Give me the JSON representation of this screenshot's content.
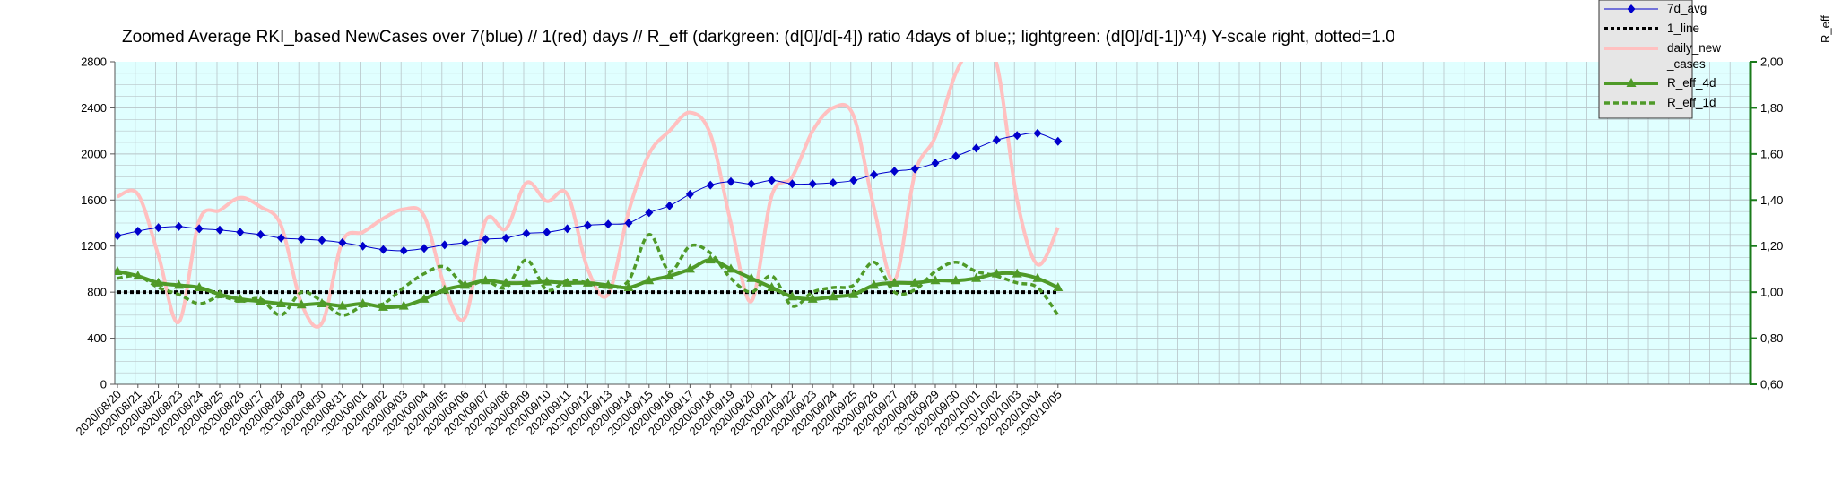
{
  "chart_data": {
    "type": "line",
    "title": "Zoomed Average RKI_based NewCases over 7(blue) // 1(red) days //  R_eff (darkgreen: (d[0]/d[-4]) ratio 4days of blue;; lightgreen: (d[0]/d[-1])^4) Y-scale right, dotted=1.0",
    "ylabel_right": "R_eff",
    "ylim": [
      0,
      2800
    ],
    "yticks": [
      "0",
      "400",
      "800",
      "1200",
      "1600",
      "2000",
      "2400",
      "2800"
    ],
    "y2lim": [
      0.6,
      2.0
    ],
    "y2ticks": [
      "0,60",
      "0,80",
      "1,00",
      "1,20",
      "1,40",
      "1,60",
      "1,80",
      "2,00"
    ],
    "grid": true,
    "legend_position": "top-right",
    "categories": [
      "2020/08/20",
      "2020/08/21",
      "2020/08/22",
      "2020/08/23",
      "2020/08/24",
      "2020/08/25",
      "2020/08/26",
      "2020/08/27",
      "2020/08/28",
      "2020/08/29",
      "2020/08/30",
      "2020/08/31",
      "2020/09/01",
      "2020/09/02",
      "2020/09/03",
      "2020/09/04",
      "2020/09/05",
      "2020/09/06",
      "2020/09/07",
      "2020/09/08",
      "2020/09/09",
      "2020/09/10",
      "2020/09/11",
      "2020/09/12",
      "2020/09/13",
      "2020/09/14",
      "2020/09/15",
      "2020/09/16",
      "2020/09/17",
      "2020/09/18",
      "2020/09/19",
      "2020/09/20",
      "2020/09/21",
      "2020/09/22",
      "2020/09/23",
      "2020/09/24",
      "2020/09/25",
      "2020/09/26",
      "2020/09/27",
      "2020/09/28",
      "2020/09/29",
      "2020/09/30",
      "2020/10/01",
      "2020/10/02",
      "2020/10/03",
      "2020/10/04",
      "2020/10/05"
    ],
    "series": [
      {
        "name": "7d_avg",
        "axis": "left",
        "color": "#0000cc",
        "style": "solid-thin",
        "marker": "diamond",
        "values": [
          1290,
          1330,
          1360,
          1370,
          1350,
          1340,
          1320,
          1300,
          1270,
          1260,
          1250,
          1230,
          1200,
          1170,
          1160,
          1180,
          1210,
          1230,
          1260,
          1270,
          1310,
          1320,
          1350,
          1380,
          1390,
          1400,
          1490,
          1550,
          1650,
          1730,
          1760,
          1740,
          1770,
          1740,
          1740,
          1750,
          1770,
          1820,
          1850,
          1870,
          1920,
          1980,
          2050,
          2120,
          2160,
          2180,
          2110
        ]
      },
      {
        "name": "1_line",
        "axis": "right",
        "color": "#000000",
        "style": "dotted-thick",
        "marker": "none",
        "values": [
          1.0,
          1.0,
          1.0,
          1.0,
          1.0,
          1.0,
          1.0,
          1.0,
          1.0,
          1.0,
          1.0,
          1.0,
          1.0,
          1.0,
          1.0,
          1.0,
          1.0,
          1.0,
          1.0,
          1.0,
          1.0,
          1.0,
          1.0,
          1.0,
          1.0,
          1.0,
          1.0,
          1.0,
          1.0,
          1.0,
          1.0,
          1.0,
          1.0,
          1.0,
          1.0,
          1.0,
          1.0,
          1.0,
          1.0,
          1.0,
          1.0,
          1.0,
          1.0,
          1.0,
          1.0,
          1.0,
          1.0
        ]
      },
      {
        "name": "daily_new_cases",
        "axis": "left",
        "color": "#ffc0c0",
        "style": "solid-thick",
        "marker": "none",
        "values": [
          1630,
          1650,
          1120,
          540,
          1420,
          1510,
          1620,
          1540,
          1380,
          700,
          530,
          1240,
          1320,
          1440,
          1520,
          1460,
          850,
          580,
          1420,
          1350,
          1750,
          1590,
          1650,
          1000,
          780,
          1500,
          2000,
          2200,
          2360,
          2170,
          1400,
          720,
          1640,
          1800,
          2200,
          2400,
          2330,
          1530,
          900,
          1830,
          2150,
          2700,
          2950,
          2780,
          1600,
          1040,
          1360
        ]
      },
      {
        "name": "R_eff_4d",
        "axis": "right",
        "color": "#4f9a28",
        "style": "solid-thick",
        "marker": "triangle",
        "values": [
          1.09,
          1.07,
          1.04,
          1.03,
          1.02,
          0.99,
          0.97,
          0.96,
          0.95,
          0.945,
          0.95,
          0.94,
          0.95,
          0.935,
          0.94,
          0.97,
          1.01,
          1.03,
          1.05,
          1.04,
          1.04,
          1.045,
          1.04,
          1.04,
          1.03,
          1.02,
          1.05,
          1.07,
          1.1,
          1.14,
          1.1,
          1.06,
          1.02,
          0.98,
          0.97,
          0.98,
          0.99,
          1.03,
          1.04,
          1.04,
          1.05,
          1.05,
          1.06,
          1.08,
          1.08,
          1.06,
          1.02
        ]
      },
      {
        "name": "R_eff_1d",
        "axis": "right",
        "color": "#4f9a28",
        "style": "dotted",
        "marker": "none",
        "values": [
          1.06,
          1.07,
          1.02,
          0.99,
          0.95,
          0.98,
          0.96,
          0.97,
          0.9,
          1.0,
          0.96,
          0.9,
          0.94,
          0.95,
          1.02,
          1.08,
          1.11,
          1.03,
          1.05,
          1.02,
          1.14,
          1.01,
          1.05,
          1.04,
          1.02,
          1.05,
          1.25,
          1.09,
          1.2,
          1.17,
          1.06,
          1.0,
          1.07,
          0.94,
          1.0,
          1.02,
          1.03,
          1.13,
          1.0,
          1.01,
          1.09,
          1.13,
          1.09,
          1.07,
          1.04,
          1.02,
          0.9
        ]
      }
    ]
  },
  "legend": {
    "items": [
      {
        "label": "7d_avg",
        "key": "7d_avg"
      },
      {
        "label": "1_line",
        "key": "1_line"
      },
      {
        "label": "daily_new",
        "label2": "_cases",
        "key": "daily_new_cases"
      },
      {
        "label": "R_eff_4d",
        "key": "R_eff_4d"
      },
      {
        "label": "R_eff_1d",
        "key": "R_eff_1d"
      }
    ]
  },
  "colors": {
    "plot_background": "#e0ffff",
    "grid": "#b8c4c8",
    "right_axis": "#1a7a1a",
    "legend_background": "#e6e6e6"
  }
}
